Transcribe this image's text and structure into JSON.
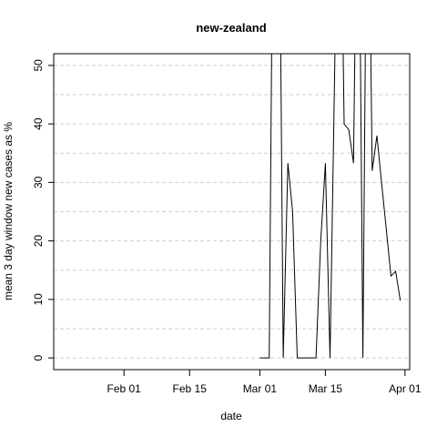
{
  "chart_data": {
    "type": "line",
    "title": "new-zealand",
    "xlabel": "date",
    "ylabel": "mean  3  day window new cases as %",
    "xlim": [
      "2020-01-17",
      "2020-04-02"
    ],
    "ylim": [
      -2,
      52
    ],
    "xticks": [
      {
        "date": "2020-02-01",
        "label": "Feb 01"
      },
      {
        "date": "2020-02-15",
        "label": "Feb 15"
      },
      {
        "date": "2020-03-01",
        "label": "Mar 01"
      },
      {
        "date": "2020-03-15",
        "label": "Mar 15"
      },
      {
        "date": "2020-04-01",
        "label": "Apr 01"
      }
    ],
    "yticks": [
      0,
      10,
      20,
      30,
      40,
      50
    ],
    "minor_grid_y": [
      5,
      15,
      25,
      35,
      45
    ],
    "grid": "horizontal dashed",
    "line_color": "#000000",
    "series": [
      {
        "x": [
          "2020-03-01",
          "2020-03-02",
          "2020-03-03",
          "2020-03-04",
          "2020-03-05",
          "2020-03-06",
          "2020-03-07",
          "2020-03-08",
          "2020-03-09",
          "2020-03-10",
          "2020-03-11",
          "2020-03-12",
          "2020-03-13",
          "2020-03-14",
          "2020-03-15",
          "2020-03-16",
          "2020-03-17",
          "2020-03-18",
          "2020-03-19",
          "2020-03-20",
          "2020-03-21",
          "2020-03-22",
          "2020-03-23",
          "2020-03-24",
          "2020-03-25",
          "2020-03-26",
          "2020-03-27",
          "2020-03-28",
          "2020-03-29",
          "2020-03-30",
          "2020-03-31"
        ],
        "y": [
          0,
          0,
          0,
          100,
          100,
          0,
          33.3,
          25,
          0,
          0,
          0,
          0,
          0,
          20,
          33.3,
          0,
          50,
          100,
          40,
          39,
          33.3,
          100,
          0,
          100,
          32,
          38,
          30,
          22,
          14,
          14.8,
          9.8
        ]
      }
    ]
  }
}
